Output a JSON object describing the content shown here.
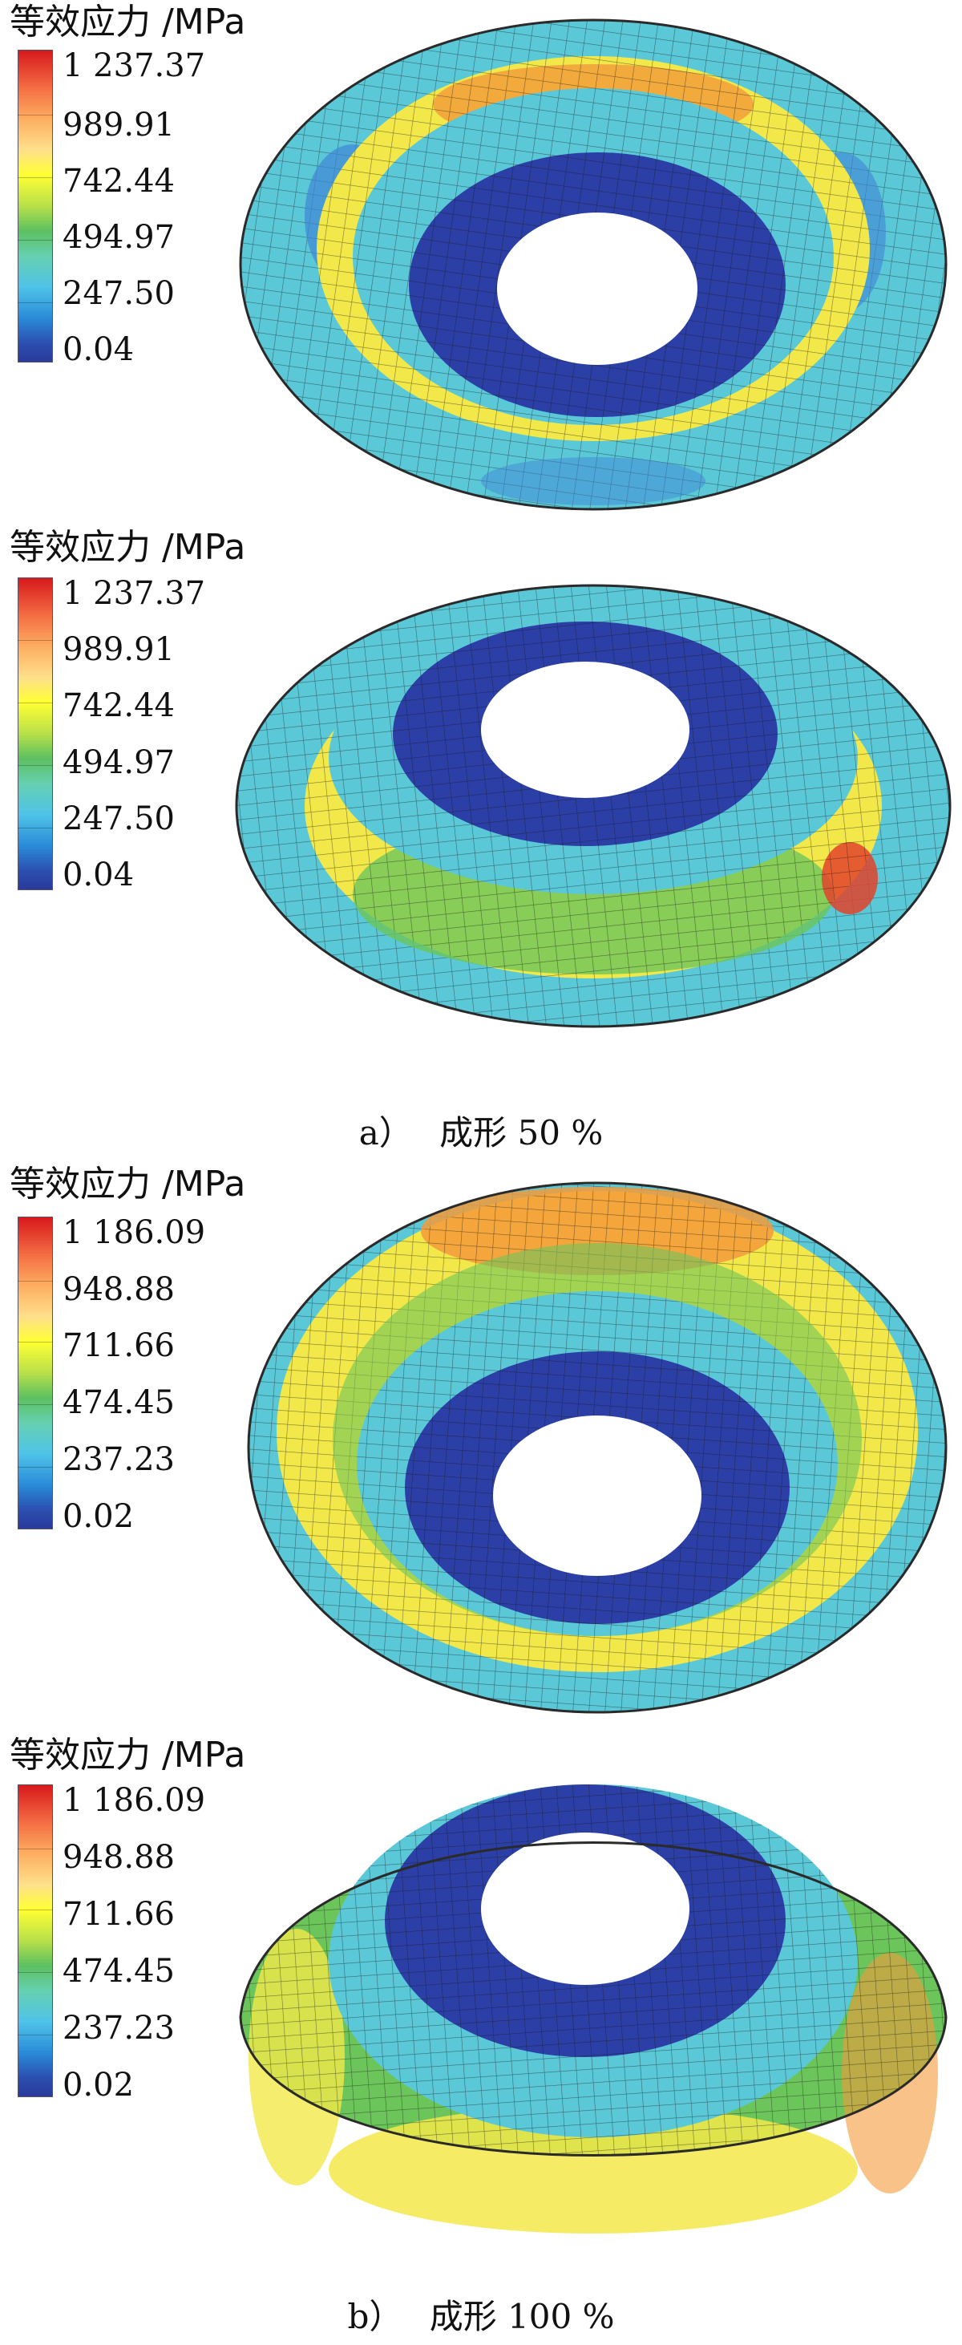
{
  "panels": [
    {
      "legend_title": "等效应力 /MPa",
      "ticks": [
        "1 237.37",
        "989.91",
        "742.44",
        "494.97",
        "247.50",
        "0.04"
      ]
    },
    {
      "legend_title": "等效应力 /MPa",
      "ticks": [
        "1 237.37",
        "989.91",
        "742.44",
        "494.97",
        "247.50",
        "0.04"
      ]
    },
    {
      "legend_title": "等效应力 /MPa",
      "ticks": [
        "1 186.09",
        "948.88",
        "711.66",
        "474.45",
        "237.23",
        "0.02"
      ]
    },
    {
      "legend_title": "等效应力 /MPa",
      "ticks": [
        "1 186.09",
        "948.88",
        "711.66",
        "474.45",
        "237.23",
        "0.02"
      ]
    }
  ],
  "captions": [
    {
      "letter": "a）",
      "text": "成形 50 %"
    },
    {
      "letter": "b）",
      "text": "成形 100 %"
    }
  ],
  "colors": {
    "blue_low": "#2b3fa6",
    "cyan": "#5bc8d8",
    "green": "#6cc55a",
    "yellow": "#f3e84a",
    "orange": "#f39a3a",
    "red": "#e2432b",
    "mesh_line": "#1a1a1a"
  }
}
